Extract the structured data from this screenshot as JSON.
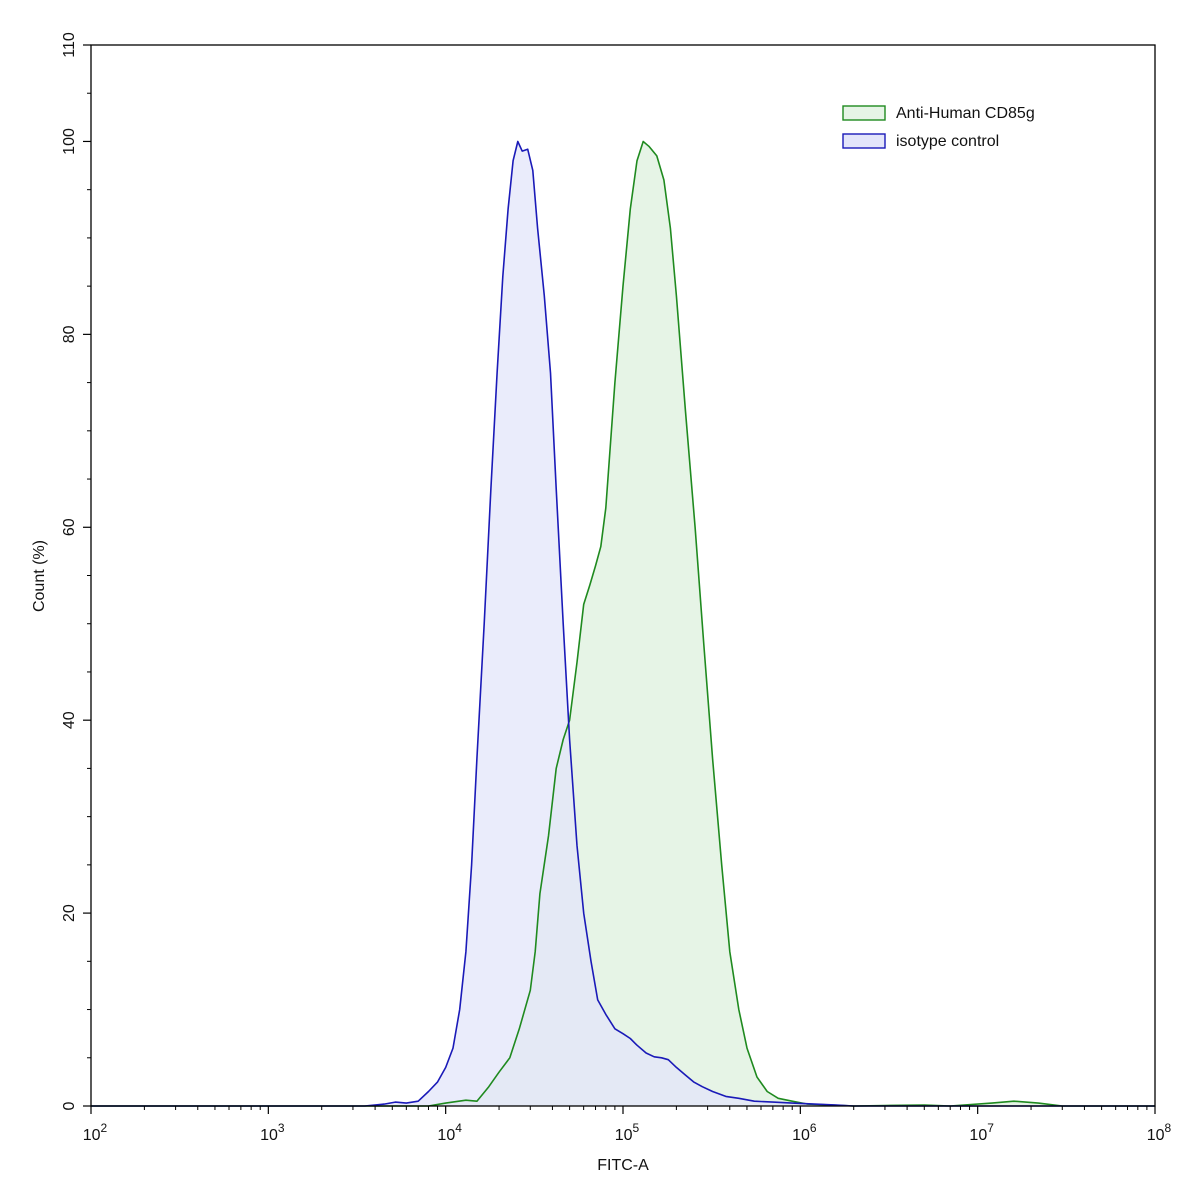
{
  "chart_data": {
    "type": "area",
    "title": "",
    "xlabel": "FITC-A",
    "ylabel": "Count  (%)",
    "x_scale": "log",
    "xlim": [
      100,
      100000000
    ],
    "ylim": [
      0,
      110
    ],
    "x_ticks": [
      {
        "base": "10",
        "exp": "2",
        "value": 100
      },
      {
        "base": "10",
        "exp": "3",
        "value": 1000
      },
      {
        "base": "10",
        "exp": "4",
        "value": 10000
      },
      {
        "base": "10",
        "exp": "5",
        "value": 100000
      },
      {
        "base": "10",
        "exp": "6",
        "value": 1000000
      },
      {
        "base": "10",
        "exp": "7",
        "value": 10000000
      },
      {
        "base": "10",
        "exp": "8",
        "value": 100000000
      }
    ],
    "y_ticks": [
      "0",
      "20",
      "40",
      "60",
      "80",
      "100",
      "110"
    ],
    "grid": false,
    "legend_position": "top-right",
    "series": [
      {
        "name": "Anti-Human CD85g",
        "line_color": "#1f8a1f",
        "fill_color": "#e6f4e6",
        "points": [
          [
            100,
            0
          ],
          [
            8000,
            0
          ],
          [
            10000,
            0.3
          ],
          [
            13000,
            0.6
          ],
          [
            15000,
            0.5
          ],
          [
            17500,
            2
          ],
          [
            20000,
            3.5
          ],
          [
            23000,
            5
          ],
          [
            26000,
            8
          ],
          [
            30000,
            12
          ],
          [
            32000,
            16
          ],
          [
            34000,
            22
          ],
          [
            38000,
            28
          ],
          [
            42000,
            35
          ],
          [
            46000,
            38
          ],
          [
            50000,
            40
          ],
          [
            55000,
            46
          ],
          [
            60000,
            52
          ],
          [
            65000,
            54
          ],
          [
            70000,
            56
          ],
          [
            75000,
            58
          ],
          [
            80000,
            62
          ],
          [
            90000,
            75
          ],
          [
            100000,
            85
          ],
          [
            110000,
            93
          ],
          [
            120000,
            98
          ],
          [
            130000,
            100
          ],
          [
            140000,
            99.5
          ],
          [
            155000,
            98.5
          ],
          [
            170000,
            96
          ],
          [
            185000,
            91
          ],
          [
            200000,
            84
          ],
          [
            225000,
            72
          ],
          [
            255000,
            60
          ],
          [
            285000,
            48
          ],
          [
            320000,
            36
          ],
          [
            360000,
            25
          ],
          [
            400000,
            16
          ],
          [
            450000,
            10
          ],
          [
            500000,
            6
          ],
          [
            570000,
            3
          ],
          [
            650000,
            1.5
          ],
          [
            750000,
            0.8
          ],
          [
            900000,
            0.5
          ],
          [
            1100000,
            0.2
          ],
          [
            1500000,
            0.1
          ],
          [
            2000000,
            0
          ],
          [
            3000000,
            0.05
          ],
          [
            5000000,
            0.1
          ],
          [
            7000000,
            0
          ],
          [
            12000000,
            0.3
          ],
          [
            16000000,
            0.5
          ],
          [
            22000000,
            0.3
          ],
          [
            30000000,
            0
          ],
          [
            100000000,
            0
          ]
        ]
      },
      {
        "name": "isotype control",
        "line_color": "#1a1ab8",
        "fill_color": "#e3e5fa",
        "points": [
          [
            100,
            0
          ],
          [
            3500,
            0
          ],
          [
            4500,
            0.2
          ],
          [
            5200,
            0.4
          ],
          [
            6000,
            0.3
          ],
          [
            7000,
            0.5
          ],
          [
            8000,
            1.5
          ],
          [
            9000,
            2.5
          ],
          [
            10000,
            4
          ],
          [
            11000,
            6
          ],
          [
            12000,
            10
          ],
          [
            13000,
            16
          ],
          [
            14000,
            25
          ],
          [
            15000,
            36
          ],
          [
            16500,
            50
          ],
          [
            18000,
            64
          ],
          [
            19500,
            76
          ],
          [
            21000,
            86
          ],
          [
            22500,
            93
          ],
          [
            24000,
            98
          ],
          [
            25500,
            100
          ],
          [
            27000,
            99
          ],
          [
            29000,
            99.2
          ],
          [
            31000,
            97
          ],
          [
            33000,
            91
          ],
          [
            36000,
            84
          ],
          [
            39000,
            76
          ],
          [
            42000,
            64
          ],
          [
            46000,
            50
          ],
          [
            50000,
            38
          ],
          [
            55000,
            27
          ],
          [
            60000,
            20
          ],
          [
            66000,
            15
          ],
          [
            72000,
            11
          ],
          [
            80000,
            9.5
          ],
          [
            90000,
            8
          ],
          [
            100000,
            7.5
          ],
          [
            110000,
            7
          ],
          [
            120000,
            6.3
          ],
          [
            135000,
            5.5
          ],
          [
            150000,
            5.1
          ],
          [
            165000,
            5
          ],
          [
            180000,
            4.8
          ],
          [
            200000,
            4
          ],
          [
            225000,
            3.2
          ],
          [
            250000,
            2.5
          ],
          [
            280000,
            2
          ],
          [
            320000,
            1.5
          ],
          [
            380000,
            1
          ],
          [
            450000,
            0.8
          ],
          [
            550000,
            0.5
          ],
          [
            700000,
            0.4
          ],
          [
            900000,
            0.3
          ],
          [
            1200000,
            0.2
          ],
          [
            1600000,
            0.1
          ],
          [
            2000000,
            0
          ],
          [
            100000000,
            0
          ]
        ]
      }
    ]
  }
}
